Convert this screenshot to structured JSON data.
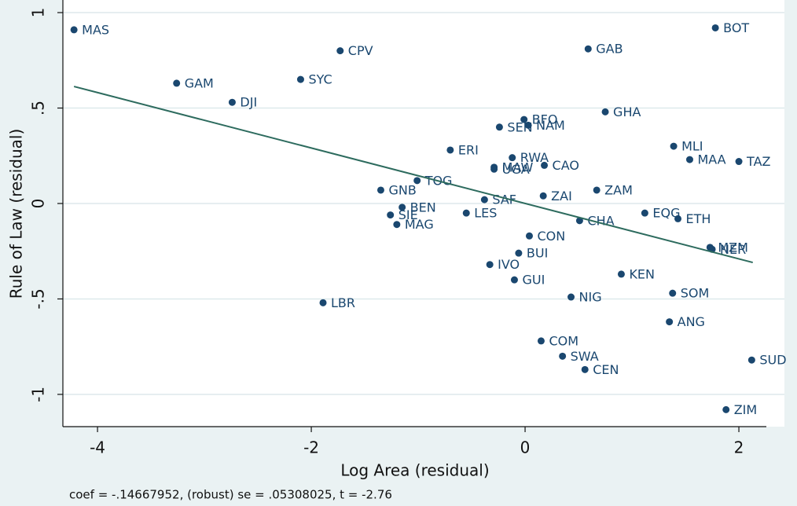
{
  "chart_data": {
    "type": "scatter",
    "x_label": "Log Area (residual)",
    "y_label": "Rule of Law (residual)",
    "note": "coef = -.14667952, (robust) se = .05308025, t = -2.76",
    "color": "#1a476f",
    "fit_color": "#2d6b5e",
    "grid": true,
    "labels": [
      "MAS",
      "CPV",
      "SYC",
      "GAM",
      "DJI",
      "GAB",
      "BOT",
      "GHA",
      "BFO",
      "NAM",
      "SEN",
      "MLI",
      "MAA",
      "TAZ",
      "ERI",
      "RWA",
      "MAW",
      "UGA",
      "CAO",
      "TOG",
      "GNB",
      "ZAM",
      "ZAI",
      "SAF",
      "BEN",
      "SIE",
      "LES",
      "MAG",
      "EQG",
      "ETH",
      "CHA",
      "MZM",
      "NER",
      "CON",
      "BUI",
      "IVO",
      "GUI",
      "KEN",
      "SOM",
      "NIG",
      "LBR",
      "ANG",
      "COM",
      "SWA",
      "SUD",
      "CEN",
      "ZIM"
    ],
    "x": [
      -4.22,
      -1.73,
      -2.1,
      -3.26,
      -2.74,
      0.59,
      1.78,
      0.75,
      -0.01,
      0.03,
      -0.24,
      1.39,
      1.54,
      2.0,
      -0.7,
      -0.12,
      -0.29,
      -0.29,
      0.18,
      -1.01,
      -1.35,
      0.67,
      0.17,
      -0.38,
      -1.15,
      -1.26,
      -0.55,
      -1.2,
      1.12,
      1.43,
      0.51,
      1.73,
      1.75,
      0.04,
      -0.06,
      -0.33,
      -0.1,
      0.9,
      1.38,
      0.43,
      -1.89,
      1.35,
      0.15,
      0.35,
      2.12,
      0.56,
      1.88
    ],
    "values": [
      0.91,
      0.8,
      0.65,
      0.63,
      0.53,
      0.81,
      0.92,
      0.48,
      0.44,
      0.41,
      0.4,
      0.3,
      0.23,
      0.22,
      0.28,
      0.24,
      0.19,
      0.18,
      0.2,
      0.12,
      0.07,
      0.07,
      0.04,
      0.02,
      -0.02,
      -0.06,
      -0.05,
      -0.11,
      -0.05,
      -0.08,
      -0.09,
      -0.23,
      -0.24,
      -0.17,
      -0.26,
      -0.32,
      -0.4,
      -0.37,
      -0.47,
      -0.49,
      -0.52,
      -0.62,
      -0.72,
      -0.8,
      -0.82,
      -0.87,
      -1.08
    ],
    "fit": {
      "x": [
        -4.22,
        2.13
      ],
      "values": [
        0.613,
        -0.309
      ]
    },
    "xlim": [
      -4.324,
      2.257
    ],
    "ylim": [
      -1.169,
      1.066
    ],
    "xticks": [
      -4,
      -2,
      0,
      2
    ],
    "yticks": [
      {
        "value": 1,
        "label": "1"
      },
      {
        "value": 0.5,
        "label": ".5"
      },
      {
        "value": 0,
        "label": "0"
      },
      {
        "value": -0.5,
        "label": "-.5"
      },
      {
        "value": -1,
        "label": "-1"
      }
    ]
  }
}
